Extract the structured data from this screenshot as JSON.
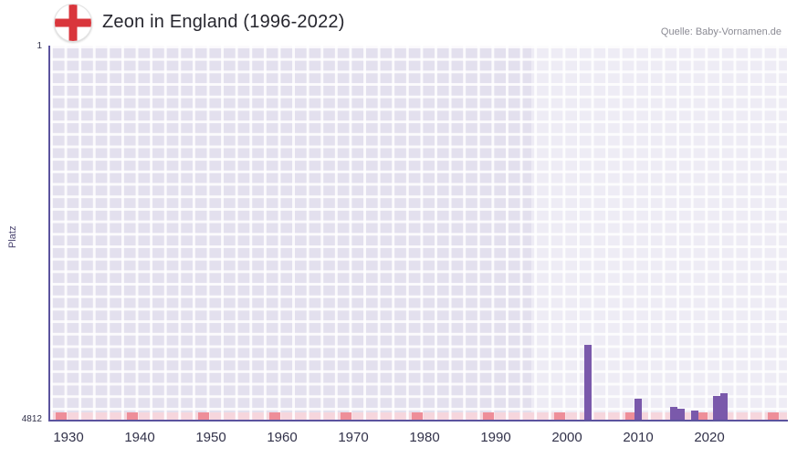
{
  "header": {
    "title": "Zeon in England (1996-2022)",
    "source": "Quelle: Baby-Vornamen.de"
  },
  "axes": {
    "y_label": "Platz",
    "y_top_tick": "1",
    "y_bottom_tick": "4812",
    "x_ticks": [
      "1930",
      "1940",
      "1950",
      "1960",
      "1970",
      "1980",
      "1990",
      "2000",
      "2010",
      "2020"
    ]
  },
  "colors": {
    "bar": "#7a59ab",
    "axis_line": "#5b539e",
    "plot_bg": "#e3e0ee",
    "strip_pink": "#f6d6dd",
    "strip_red": "#ee8e99",
    "flag_cross": "#d9363c",
    "title": "#26262e",
    "source": "#8b8b94",
    "tick": "#32324a"
  },
  "chart_data": {
    "type": "bar",
    "title": "Zeon in England (1996-2022)",
    "xlabel": "",
    "ylabel": "Platz",
    "y_inverted": true,
    "ylim": [
      1,
      4812
    ],
    "x_tick_years": [
      1930,
      1940,
      1950,
      1960,
      1970,
      1980,
      1990,
      2000,
      2010,
      2020
    ],
    "highlight_year_start": 1995,
    "grid": true,
    "legend_position": "none",
    "series": [
      {
        "name": "Platz",
        "points": [
          {
            "year": 2003,
            "rank": 3840
          },
          {
            "year": 2010,
            "rank": 4530
          },
          {
            "year": 2015,
            "rank": 4640
          },
          {
            "year": 2016,
            "rank": 4660
          },
          {
            "year": 2018,
            "rank": 4680
          },
          {
            "year": 2021,
            "rank": 4500
          },
          {
            "year": 2022,
            "rank": 4460
          }
        ]
      }
    ]
  },
  "strip": {
    "marker_years": [
      1929,
      1939,
      1949,
      1959,
      1969,
      1979,
      1989,
      1999,
      2009,
      2019,
      2029
    ]
  }
}
